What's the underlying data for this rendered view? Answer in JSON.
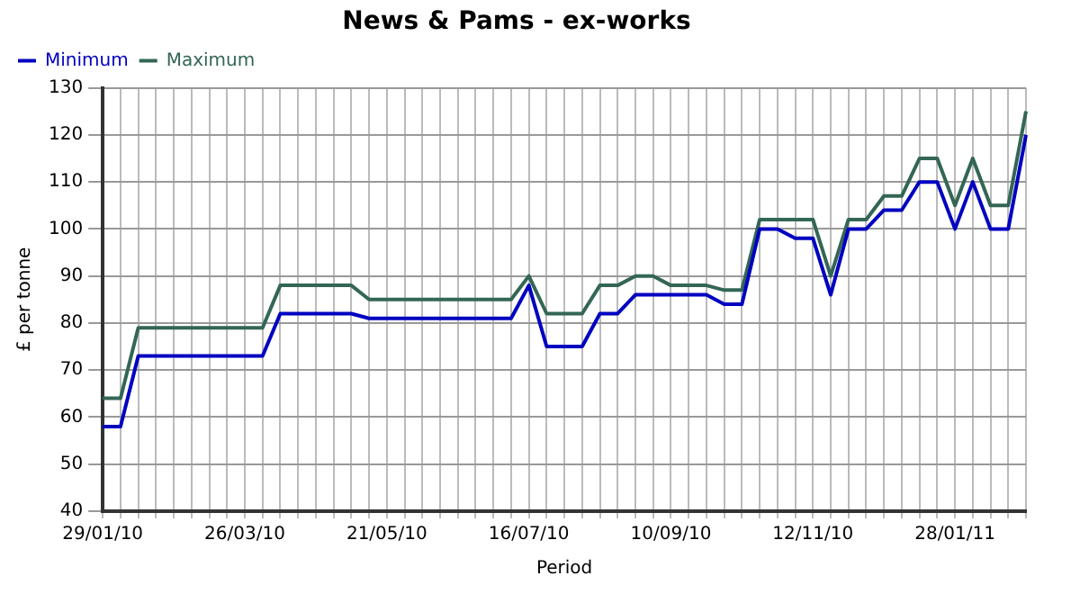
{
  "chart_data": {
    "type": "line",
    "title": "News & Pams - ex-works",
    "xlabel": "Period",
    "ylabel": "£ per tonne",
    "categories": [
      "29/01/10",
      null,
      null,
      null,
      null,
      null,
      null,
      null,
      "26/03/10",
      null,
      null,
      null,
      null,
      null,
      null,
      null,
      "21/05/10",
      null,
      null,
      null,
      null,
      null,
      null,
      null,
      "16/07/10",
      null,
      null,
      null,
      null,
      null,
      null,
      null,
      "10/09/10",
      null,
      null,
      null,
      null,
      null,
      null,
      null,
      "12/11/10",
      null,
      null,
      null,
      null,
      null,
      null,
      null,
      "28/01/11",
      null,
      null,
      null,
      null
    ],
    "series": [
      {
        "name": "Minimum",
        "color": "#0000c0",
        "values": [
          58,
          58,
          73,
          73,
          73,
          73,
          73,
          73,
          73,
          73,
          82,
          82,
          82,
          82,
          82,
          81,
          81,
          81,
          81,
          81,
          81,
          81,
          81,
          81,
          88,
          75,
          75,
          75,
          82,
          82,
          86,
          86,
          86,
          86,
          86,
          84,
          84,
          100,
          100,
          98,
          98,
          86,
          100,
          100,
          104,
          104,
          110,
          110,
          100,
          110,
          100,
          100,
          120
        ]
      },
      {
        "name": "Maximum",
        "color": "#336655",
        "values": [
          64,
          64,
          79,
          79,
          79,
          79,
          79,
          79,
          79,
          79,
          88,
          88,
          88,
          88,
          88,
          85,
          85,
          85,
          85,
          85,
          85,
          85,
          85,
          85,
          90,
          82,
          82,
          82,
          88,
          88,
          90,
          90,
          88,
          88,
          88,
          87,
          87,
          102,
          102,
          102,
          102,
          90,
          102,
          102,
          107,
          107,
          115,
          115,
          105,
          115,
          105,
          105,
          125
        ]
      }
    ],
    "ylim": [
      40,
      130
    ],
    "yticks": [
      40,
      50,
      60,
      70,
      80,
      90,
      100,
      110,
      120,
      130
    ],
    "grid": true,
    "legend": "top left",
    "marker": "none",
    "line_style": "solid"
  }
}
